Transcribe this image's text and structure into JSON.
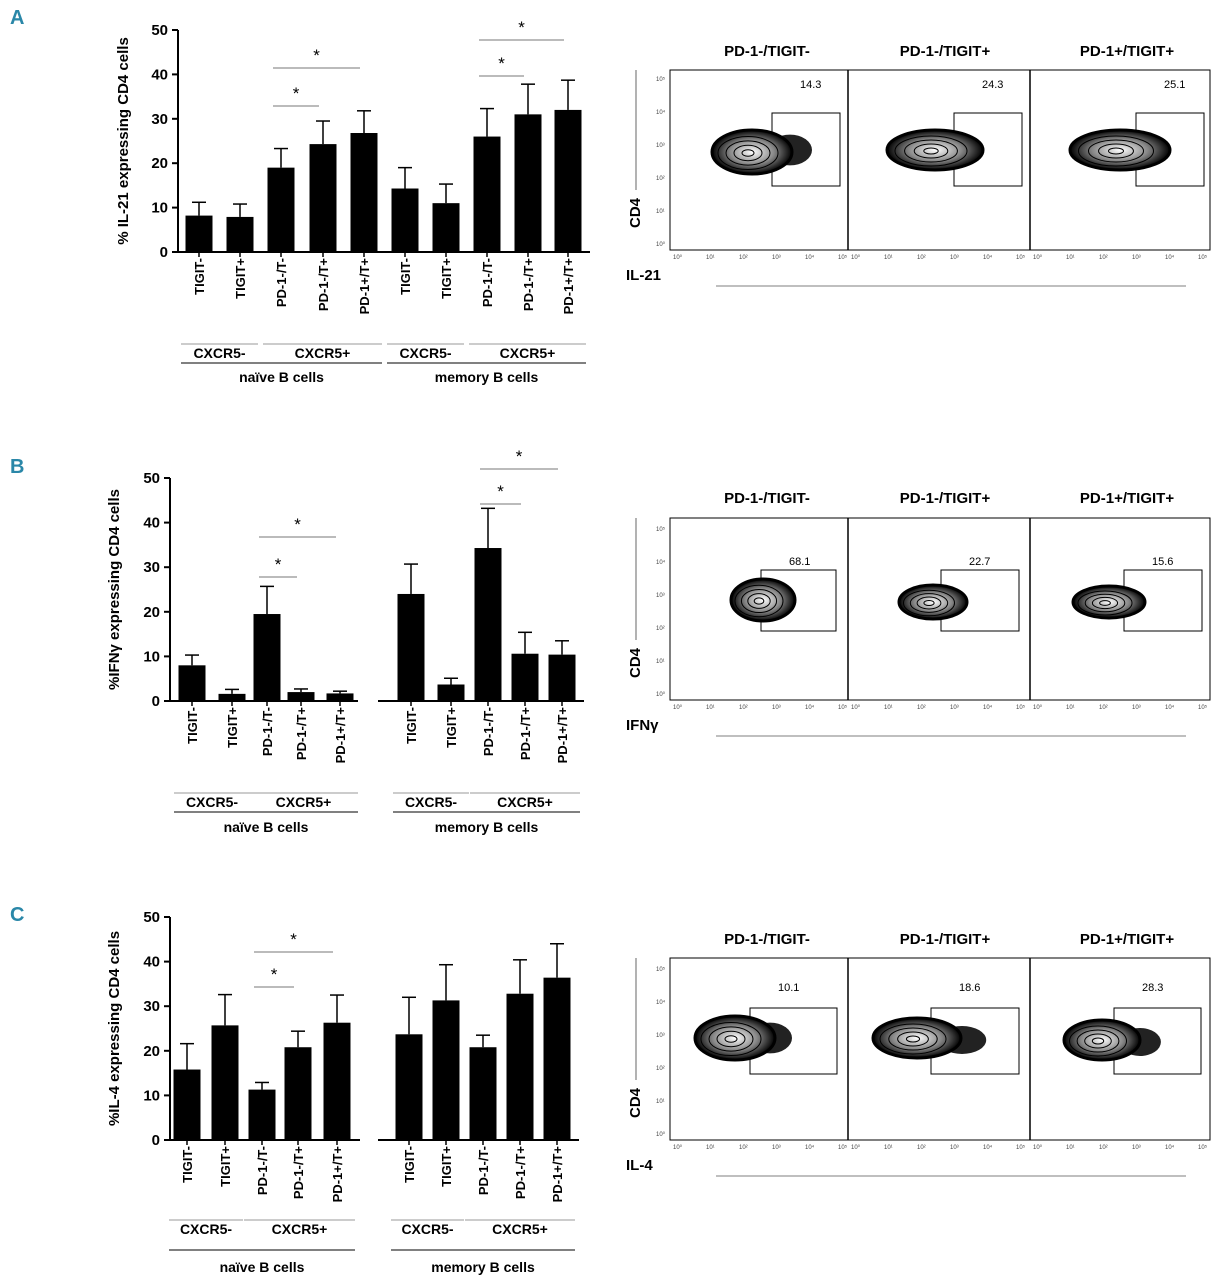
{
  "panels": [
    {
      "letter": "A",
      "chart_data": {
        "type": "bar",
        "ylabel": "% IL-21 expressing CD4 cells",
        "ylim": [
          0,
          50
        ],
        "yticks": [
          0,
          10,
          20,
          30,
          40,
          50
        ],
        "categories": [
          "TIGIT-",
          "TIGIT+",
          "PD-1-/T-",
          "PD-1-/T+",
          "PD-1+/T+",
          "TIGIT-",
          "TIGIT+",
          "PD-1-/T-",
          "PD-1-/T+",
          "PD-1+/T+"
        ],
        "values": [
          8.2,
          7.9,
          19.0,
          24.3,
          26.8,
          14.3,
          11.0,
          26.0,
          31.0,
          32.0
        ],
        "errors": [
          3.0,
          2.9,
          4.3,
          5.2,
          5.0,
          4.7,
          4.3,
          6.3,
          6.8,
          6.7
        ],
        "groups": {
          "naive": {
            "cxcr5_neg": "CXCR5-",
            "cxcr5_pos": "CXCR5+",
            "label": "naïve B cells"
          },
          "memory": {
            "cxcr5_neg": "CXCR5-",
            "cxcr5_pos": "CXCR5+",
            "label": "memory B cells"
          }
        },
        "significance": [
          {
            "from": 2,
            "to": 3,
            "label": "*"
          },
          {
            "from": 2,
            "to": 4,
            "label": "*"
          },
          {
            "from": 7,
            "to": 8,
            "label": "*"
          },
          {
            "from": 7,
            "to": 9,
            "label": "*"
          }
        ]
      },
      "flow": {
        "titles": [
          "PD-1-/TIGIT-",
          "PD-1-/TIGIT+",
          "PD-1+/TIGIT+"
        ],
        "percentages": [
          "14.3",
          "24.3",
          "25.1"
        ],
        "ylabel": "CD4",
        "xlabel": "IL-21"
      }
    },
    {
      "letter": "B",
      "chart_data": {
        "type": "bar",
        "ylabel": "%IFNγ expressing CD4 cells",
        "ylim": [
          0,
          50
        ],
        "yticks": [
          0,
          10,
          20,
          30,
          40,
          50
        ],
        "categories": [
          "TIGIT-",
          "TIGIT+",
          "PD-1-/T-",
          "PD-1-/T+",
          "PD-1+/T+",
          "TIGIT-",
          "TIGIT+",
          "PD-1-/T-",
          "PD-1-/T+",
          "PD-1+/T+"
        ],
        "values": [
          8.0,
          1.6,
          19.5,
          2.0,
          1.7,
          24.0,
          3.7,
          34.3,
          10.6,
          10.4
        ],
        "errors": [
          2.3,
          1.0,
          6.2,
          0.7,
          0.5,
          6.7,
          1.4,
          8.9,
          4.8,
          3.1
        ],
        "groups": {
          "naive": {
            "cxcr5_neg": "CXCR5-",
            "cxcr5_pos": "CXCR5+",
            "label": "naïve B cells"
          },
          "memory": {
            "cxcr5_neg": "CXCR5-",
            "cxcr5_pos": "CXCR5+",
            "label": "memory B cells"
          }
        },
        "significance": [
          {
            "from": 2,
            "to": 3,
            "label": "*"
          },
          {
            "from": 2,
            "to": 4,
            "label": "*"
          },
          {
            "from": 7,
            "to": 8,
            "label": "*"
          },
          {
            "from": 7,
            "to": 9,
            "label": "*"
          }
        ]
      },
      "flow": {
        "titles": [
          "PD-1-/TIGIT-",
          "PD-1-/TIGIT+",
          "PD-1+/TIGIT+"
        ],
        "percentages": [
          "68.1",
          "22.7",
          "15.6"
        ],
        "ylabel": "CD4",
        "xlabel": "IFNγ"
      }
    },
    {
      "letter": "C",
      "chart_data": {
        "type": "bar",
        "ylabel": "%IL-4 expressing CD4 cells",
        "ylim": [
          0,
          50
        ],
        "yticks": [
          0,
          10,
          20,
          30,
          40,
          50
        ],
        "categories": [
          "TIGIT-",
          "TIGIT+",
          "PD-1-/T-",
          "PD-1-/T+",
          "PD-1+/T+",
          "TIGIT-",
          "TIGIT+",
          "PD-1-/T-",
          "PD-1-/T+",
          "PD-1+/T+"
        ],
        "values": [
          15.8,
          25.7,
          11.3,
          20.8,
          26.3,
          23.7,
          31.3,
          20.8,
          32.8,
          36.4
        ],
        "errors": [
          5.8,
          6.9,
          1.6,
          3.6,
          6.2,
          8.3,
          8.0,
          2.7,
          7.6,
          7.6
        ],
        "groups": {
          "naive": {
            "cxcr5_neg": "CXCR5-",
            "cxcr5_pos": "CXCR5+",
            "label": "naïve B cells"
          },
          "memory": {
            "cxcr5_neg": "CXCR5-",
            "cxcr5_pos": "CXCR5+",
            "label": "memory B cells"
          }
        },
        "significance": [
          {
            "from": 2,
            "to": 3,
            "label": "*"
          },
          {
            "from": 2,
            "to": 4,
            "label": "*"
          }
        ]
      },
      "flow": {
        "titles": [
          "PD-1-/TIGIT-",
          "PD-1-/TIGIT+",
          "PD-1+/TIGIT+"
        ],
        "percentages": [
          "10.1",
          "18.6",
          "28.3"
        ],
        "ylabel": "CD4",
        "xlabel": "IL-4"
      }
    }
  ],
  "flow_axis_ticks": [
    "10⁰",
    "10¹",
    "10²",
    "10³",
    "10⁴",
    "10⁵"
  ]
}
